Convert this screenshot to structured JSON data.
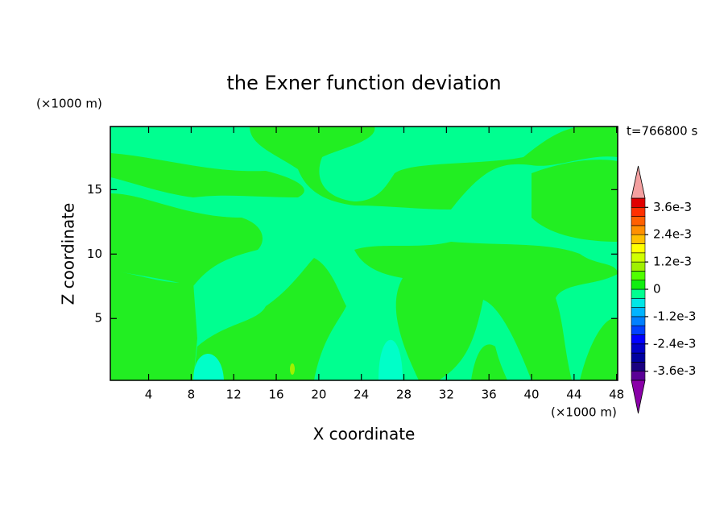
{
  "chart_data": {
    "type": "contour",
    "title": "the Exner function deviation",
    "x_label": "X coordinate",
    "y_label": "Z coordinate",
    "x_unit": "(×1000 m)",
    "y_unit": "(×1000 m)",
    "time_label": "t=766800 s",
    "xlim": [
      0.4,
      48.1
    ],
    "ylim": [
      0.2,
      19.9
    ],
    "xticks": [
      4,
      8,
      12,
      16,
      20,
      24,
      28,
      32,
      36,
      40,
      44,
      48
    ],
    "yticks": [
      5,
      10,
      15
    ],
    "colorbar": {
      "levels": [
        -0.004,
        -0.0036,
        -0.0032,
        -0.0028,
        -0.0024,
        -0.002,
        -0.0016,
        -0.0012,
        -0.0008,
        -0.0004,
        0,
        0.0004,
        0.0008,
        0.0012,
        0.0016,
        0.002,
        0.0024,
        0.0028,
        0.0032,
        0.0036,
        0.004
      ],
      "colors": [
        "#5a0096",
        "#1a0080",
        "#0000a0",
        "#0000c8",
        "#0000ff",
        "#0040ff",
        "#0080ff",
        "#00b4ff",
        "#00e6e6",
        "#00ff90",
        "#10ee10",
        "#50ff00",
        "#a0f000",
        "#d0ff00",
        "#ffff00",
        "#ffc000",
        "#ff9000",
        "#ff6000",
        "#ff3000",
        "#e00000"
      ],
      "under_color": "#8a00a8",
      "over_color": "#f4a0a0",
      "ticks": [
        {
          "value": 0.0036,
          "label": "3.6e-3"
        },
        {
          "value": 0.0024,
          "label": "2.4e-3"
        },
        {
          "value": 0.0012,
          "label": "1.2e-3"
        },
        0,
        {
          "value": -0.0012,
          "label": "-1.2e-3"
        },
        {
          "value": -0.0024,
          "label": "-2.4e-3"
        },
        {
          "value": -0.0036,
          "label": "-3.6e-3"
        }
      ]
    }
  }
}
